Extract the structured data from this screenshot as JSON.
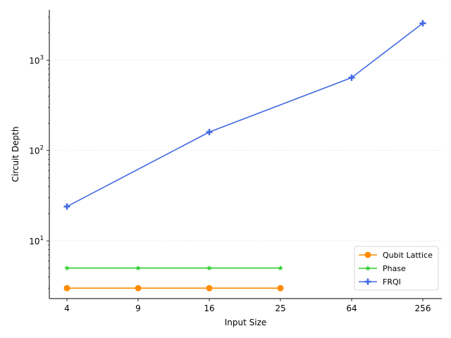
{
  "chart_data": {
    "type": "line",
    "xlabel": "Input Size",
    "ylabel": "Circuit Depth",
    "categories": [
      "4",
      "9",
      "16",
      "25",
      "64",
      "256"
    ],
    "y_scale": "log",
    "ylim": [
      2.3,
      3600
    ],
    "y_ticks": [
      {
        "value": 10,
        "base": "10",
        "exp": "1"
      },
      {
        "value": 100,
        "base": "10",
        "exp": "2"
      },
      {
        "value": 1000,
        "base": "10",
        "exp": "3"
      }
    ],
    "grid": "horizontal dotted at major y ticks",
    "legend_position": "bottom-right",
    "series": [
      {
        "name": "Qubit Lattice",
        "color": "#ff8c00",
        "marker": "circle",
        "values": [
          3,
          3,
          3,
          3,
          null,
          null
        ]
      },
      {
        "name": "Phase",
        "color": "#32cd32",
        "marker": "star",
        "values": [
          5,
          5,
          5,
          5,
          null,
          null
        ]
      },
      {
        "name": "FRQI",
        "color": "#4169e1",
        "marker": "plus",
        "values": [
          24,
          null,
          160,
          null,
          640,
          2560
        ]
      }
    ]
  }
}
